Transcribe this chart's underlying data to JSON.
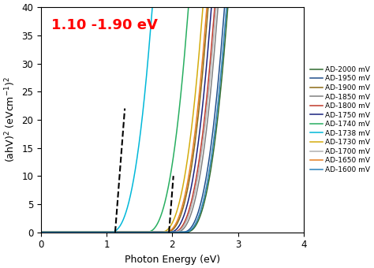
{
  "title_annotation": "1.10 -1.90 eV",
  "title_color": "#FF0000",
  "xlabel": "Photon Energy (eV)",
  "ylabel": "(ahV)$^2$ (eVcm$^{-1}$)$^2$",
  "xlim": [
    0,
    4
  ],
  "ylim": [
    0,
    40
  ],
  "xticks": [
    0,
    1,
    2,
    3,
    4
  ],
  "yticks": [
    0,
    5,
    10,
    15,
    20,
    25,
    30,
    35,
    40
  ],
  "series": [
    {
      "label": "AD-2000 mV",
      "color": "#2d6a2d",
      "onset": 2.2,
      "steepness": 120
    },
    {
      "label": "AD-1950 mV",
      "color": "#1f4e8c",
      "onset": 2.15,
      "steepness": 120
    },
    {
      "label": "AD-1900 mV",
      "color": "#8B6914",
      "onset": 1.9,
      "steepness": 120
    },
    {
      "label": "AD-1850 mV",
      "color": "#808080",
      "onset": 2.05,
      "steepness": 120
    },
    {
      "label": "AD-1800 mV",
      "color": "#c0392b",
      "onset": 2.0,
      "steepness": 120
    },
    {
      "label": "AD-1750 mV",
      "color": "#1a237e",
      "onset": 1.95,
      "steepness": 120
    },
    {
      "label": "AD-1740 mV",
      "color": "#27ae60",
      "onset": 1.6,
      "steepness": 120
    },
    {
      "label": "AD-1738 mV",
      "color": "#00b8d9",
      "onset": 1.05,
      "steepness": 120
    },
    {
      "label": "AD-1730 mV",
      "color": "#d4ac0d",
      "onset": 1.82,
      "steepness": 120
    },
    {
      "label": "AD-1700 mV",
      "color": "#b0b0b0",
      "onset": 2.02,
      "steepness": 120
    },
    {
      "label": "AD-1650 mV",
      "color": "#e67e22",
      "onset": 1.88,
      "steepness": 120
    },
    {
      "label": "AD-1600 mV",
      "color": "#2980b9",
      "onset": 2.18,
      "steepness": 120
    }
  ],
  "dash1_x0": 1.13,
  "dash1_slope": 150,
  "dash1_ymax": 22,
  "dash2_x0": 1.95,
  "dash2_slope": 150,
  "dash2_ymax": 10,
  "bg_color": "#ffffff",
  "legend_fontsize": 6.5,
  "axis_fontsize": 9,
  "annotation_fontsize": 13
}
